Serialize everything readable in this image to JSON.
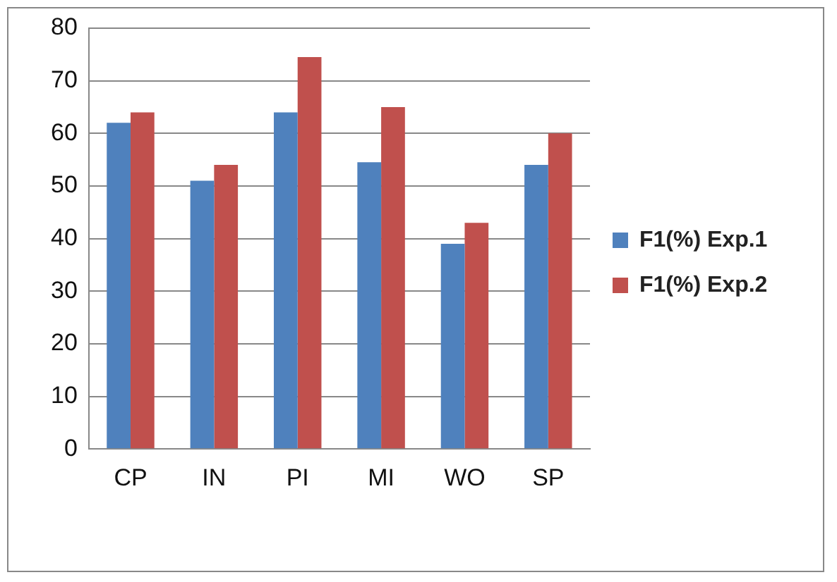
{
  "chart_data": {
    "type": "bar",
    "categories": [
      "CP",
      "IN",
      "PI",
      "MI",
      "WO",
      "SP"
    ],
    "series": [
      {
        "name": "F1(%) Exp.1",
        "color": "#4f81bd",
        "values": [
          62,
          51,
          64,
          54.5,
          39,
          54
        ]
      },
      {
        "name": "F1(%) Exp.2",
        "color": "#c0504d",
        "values": [
          64,
          54,
          74.5,
          65,
          43,
          60
        ]
      }
    ],
    "ylim": [
      0,
      80
    ],
    "yticks": [
      0,
      10,
      20,
      30,
      40,
      50,
      60,
      70,
      80
    ],
    "grid": "y",
    "legend": "right"
  }
}
